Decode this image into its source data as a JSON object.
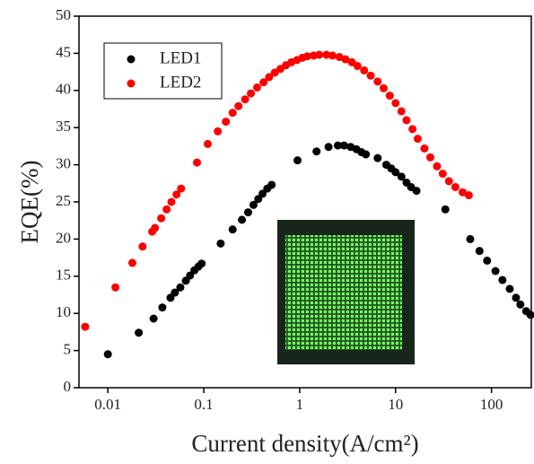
{
  "chart_data": {
    "type": "scatter",
    "x_label": "Current density(A/cm²)",
    "y_label": "EQE(%)",
    "xscale": "log",
    "xlim": [
      0.005,
      260
    ],
    "ylim": [
      0,
      50
    ],
    "xticks": [
      0.01,
      0.1,
      1,
      10,
      100
    ],
    "yticks": [
      0,
      5,
      10,
      15,
      20,
      25,
      30,
      35,
      40,
      45,
      50
    ],
    "legend": "upper left",
    "series": [
      {
        "name": "LED1",
        "color": "#000000",
        "x": [
          0.01,
          0.021,
          0.03,
          0.037,
          0.045,
          0.05,
          0.057,
          0.065,
          0.072,
          0.08,
          0.088,
          0.095,
          0.15,
          0.2,
          0.25,
          0.29,
          0.33,
          0.37,
          0.41,
          0.46,
          0.51,
          0.95,
          1.5,
          2.0,
          2.5,
          2.9,
          3.4,
          3.9,
          4.4,
          4.9,
          6.5,
          8,
          9,
          10,
          11.5,
          13,
          14.5,
          16.5,
          33,
          60,
          75,
          90,
          110,
          130,
          155,
          180,
          200,
          230,
          255
        ],
        "values": [
          4.5,
          7.4,
          9.3,
          10.8,
          12.1,
          12.8,
          13.5,
          14.4,
          15.1,
          15.8,
          16.3,
          16.7,
          19.4,
          21.3,
          22.6,
          23.6,
          24.6,
          25.4,
          26.1,
          26.8,
          27.3,
          30.6,
          31.8,
          32.4,
          32.6,
          32.6,
          32.4,
          32.1,
          31.7,
          31.4,
          30.9,
          30.0,
          29.5,
          29.0,
          28.4,
          27.6,
          27.0,
          26.5,
          24.0,
          20.0,
          18.4,
          17.1,
          15.7,
          14.5,
          13.3,
          12.1,
          11.2,
          10.3,
          9.8
        ]
      },
      {
        "name": "LED2",
        "color": "#ff0000",
        "x": [
          0.0058,
          0.012,
          0.018,
          0.023,
          0.029,
          0.031,
          0.036,
          0.041,
          0.046,
          0.052,
          0.058,
          0.085,
          0.11,
          0.14,
          0.17,
          0.2,
          0.23,
          0.27,
          0.31,
          0.36,
          0.42,
          0.48,
          0.55,
          0.63,
          0.72,
          0.82,
          0.94,
          1.07,
          1.2,
          1.4,
          1.6,
          1.9,
          2.2,
          2.6,
          3.0,
          3.5,
          4.0,
          4.7,
          5.5,
          6.5,
          7.5,
          8.7,
          10,
          11.5,
          13,
          15,
          17,
          20,
          23,
          27,
          31,
          36,
          42,
          50,
          58
        ],
        "values": [
          8.2,
          13.5,
          16.8,
          19.0,
          21.0,
          21.5,
          22.8,
          24.0,
          25.0,
          26.0,
          26.8,
          30.3,
          32.8,
          34.5,
          35.8,
          37.0,
          37.9,
          38.8,
          39.6,
          40.4,
          41.1,
          41.8,
          42.4,
          42.9,
          43.4,
          43.8,
          44.1,
          44.4,
          44.6,
          44.7,
          44.8,
          44.8,
          44.7,
          44.5,
          44.2,
          43.8,
          43.3,
          42.7,
          42.0,
          41.2,
          40.3,
          39.3,
          38.3,
          37.2,
          36.0,
          34.8,
          33.5,
          32.2,
          31.0,
          29.8,
          28.8,
          27.8,
          27.0,
          26.3,
          25.9
        ]
      }
    ]
  }
}
